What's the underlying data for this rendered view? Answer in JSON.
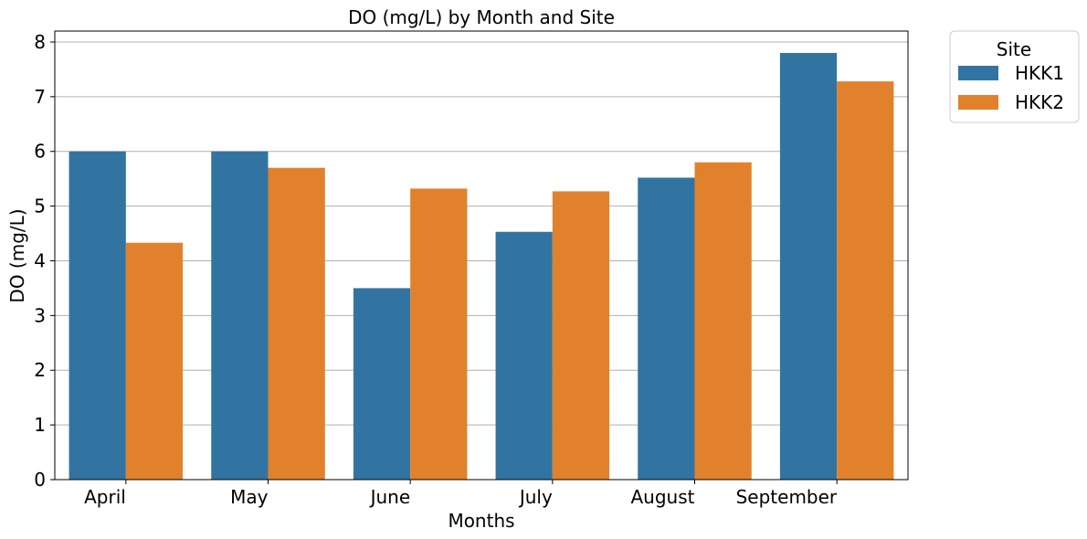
{
  "chart_data": {
    "type": "bar",
    "title": "DO (mg/L) by Month and Site",
    "xlabel": "Months",
    "ylabel": "DO (mg/L)",
    "categories": [
      "April",
      "May",
      "June",
      "July",
      "August",
      "September"
    ],
    "series": [
      {
        "name": "HKK1",
        "color": "#3274a1",
        "values": [
          6.0,
          6.0,
          3.5,
          4.53,
          5.52,
          7.8
        ]
      },
      {
        "name": "HKK2",
        "color": "#e1812c",
        "values": [
          4.33,
          5.7,
          5.32,
          5.27,
          5.8,
          7.28
        ]
      }
    ],
    "ylim": [
      0,
      8.2
    ],
    "yticks": [
      0,
      1,
      2,
      3,
      4,
      5,
      6,
      7,
      8
    ],
    "grid": "y",
    "legend": {
      "title": "Site",
      "placement": "outside-top-right"
    }
  }
}
